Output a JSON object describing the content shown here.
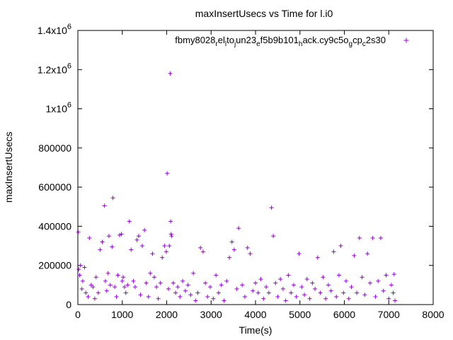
{
  "chart_data": {
    "type": "scatter",
    "title": "maxInsertUsecs vs Time for l.i0",
    "xlabel": "Time(s)",
    "ylabel": "maxInsertUsecs",
    "xlim": [
      0,
      8000
    ],
    "ylim": [
      0,
      1400000
    ],
    "x_ticks": [
      {
        "value": 0,
        "label": "0"
      },
      {
        "value": 1000,
        "label": "1000"
      },
      {
        "value": 2000,
        "label": "2000"
      },
      {
        "value": 3000,
        "label": "3000"
      },
      {
        "value": 4000,
        "label": "4000"
      },
      {
        "value": 5000,
        "label": "5000"
      },
      {
        "value": 6000,
        "label": "6000"
      },
      {
        "value": 7000,
        "label": "7000"
      },
      {
        "value": 8000,
        "label": "8000"
      }
    ],
    "y_ticks": [
      {
        "value": 0,
        "label": "0",
        "exp": ""
      },
      {
        "value": 200000,
        "label": "200000",
        "exp": ""
      },
      {
        "value": 400000,
        "label": "400000",
        "exp": ""
      },
      {
        "value": 600000,
        "label": "600000",
        "exp": ""
      },
      {
        "value": 800000,
        "label": "800000",
        "exp": ""
      },
      {
        "value": 1000000,
        "label": "1x10",
        "exp": "6"
      },
      {
        "value": 1200000,
        "label": "1.2x10",
        "exp": "6"
      },
      {
        "value": 1400000,
        "label": "1.4x10",
        "exp": "6"
      }
    ],
    "grid": false,
    "legend_position": "top-right",
    "series": [
      {
        "legend_parts": [
          "fbmy8028",
          "r",
          "el",
          "l",
          "to",
          "j",
          "un23",
          "e",
          "f5b9b101",
          "h",
          "ack.cy9c5o",
          "g",
          "cp",
          "c",
          "2s30"
        ],
        "color": "#9400d3",
        "marker": "+",
        "points": [
          [
            10,
            370000
          ],
          [
            20,
            180000
          ],
          [
            40,
            150000
          ],
          [
            60,
            200000
          ],
          [
            90,
            80000
          ],
          [
            110,
            120000
          ],
          [
            150,
            190000
          ],
          [
            180,
            60000
          ],
          [
            230,
            40000
          ],
          [
            260,
            340000
          ],
          [
            300,
            100000
          ],
          [
            340,
            90000
          ],
          [
            380,
            30000
          ],
          [
            410,
            140000
          ],
          [
            460,
            60000
          ],
          [
            500,
            280000
          ],
          [
            550,
            320000
          ],
          [
            600,
            505000
          ],
          [
            620,
            120000
          ],
          [
            650,
            70000
          ],
          [
            680,
            160000
          ],
          [
            700,
            350000
          ],
          [
            730,
            100000
          ],
          [
            770,
            295000
          ],
          [
            790,
            545000
          ],
          [
            830,
            90000
          ],
          [
            870,
            40000
          ],
          [
            900,
            150000
          ],
          [
            940,
            355000
          ],
          [
            980,
            360000
          ],
          [
            1000,
            120000
          ],
          [
            1020,
            140000
          ],
          [
            1050,
            90000
          ],
          [
            1080,
            60000
          ],
          [
            1120,
            100000
          ],
          [
            1160,
            425000
          ],
          [
            1200,
            280000
          ],
          [
            1250,
            120000
          ],
          [
            1290,
            90000
          ],
          [
            1330,
            330000
          ],
          [
            1370,
            350000
          ],
          [
            1410,
            50000
          ],
          [
            1450,
            300000
          ],
          [
            1500,
            380000
          ],
          [
            1540,
            110000
          ],
          [
            1590,
            40000
          ],
          [
            1630,
            160000
          ],
          [
            1680,
            260000
          ],
          [
            1720,
            140000
          ],
          [
            1770,
            90000
          ],
          [
            1810,
            30000
          ],
          [
            1860,
            110000
          ],
          [
            1900,
            240000
          ],
          [
            1950,
            300000
          ],
          [
            1990,
            270000
          ],
          [
            2010,
            670000
          ],
          [
            2040,
            80000
          ],
          [
            2060,
            300000
          ],
          [
            2080,
            1180000
          ],
          [
            2090,
            425000
          ],
          [
            2100,
            360000
          ],
          [
            2110,
            350000
          ],
          [
            2150,
            110000
          ],
          [
            2200,
            60000
          ],
          [
            2250,
            90000
          ],
          [
            2300,
            40000
          ],
          [
            2360,
            120000
          ],
          [
            2420,
            70000
          ],
          [
            2480,
            100000
          ],
          [
            2540,
            50000
          ],
          [
            2600,
            160000
          ],
          [
            2650,
            20000
          ],
          [
            2700,
            60000
          ],
          [
            2760,
            290000
          ],
          [
            2820,
            270000
          ],
          [
            2870,
            110000
          ],
          [
            2920,
            40000
          ],
          [
            2980,
            90000
          ],
          [
            3050,
            30000
          ],
          [
            3110,
            150000
          ],
          [
            3170,
            60000
          ],
          [
            3230,
            100000
          ],
          [
            3290,
            20000
          ],
          [
            3350,
            120000
          ],
          [
            3410,
            240000
          ],
          [
            3470,
            320000
          ],
          [
            3520,
            280000
          ],
          [
            3580,
            80000
          ],
          [
            3620,
            390000
          ],
          [
            3700,
            100000
          ],
          [
            3760,
            40000
          ],
          [
            3820,
            290000
          ],
          [
            3880,
            260000
          ],
          [
            3940,
            70000
          ],
          [
            4000,
            110000
          ],
          [
            4060,
            60000
          ],
          [
            4120,
            130000
          ],
          [
            4180,
            30000
          ],
          [
            4240,
            90000
          ],
          [
            4300,
            60000
          ],
          [
            4360,
            495000
          ],
          [
            4400,
            350000
          ],
          [
            4450,
            110000
          ],
          [
            4500,
            40000
          ],
          [
            4560,
            130000
          ],
          [
            4620,
            80000
          ],
          [
            4680,
            20000
          ],
          [
            4740,
            150000
          ],
          [
            4800,
            60000
          ],
          [
            4860,
            100000
          ],
          [
            4920,
            40000
          ],
          [
            4980,
            260000
          ],
          [
            5040,
            90000
          ],
          [
            5100,
            50000
          ],
          [
            5160,
            130000
          ],
          [
            5220,
            30000
          ],
          [
            5280,
            110000
          ],
          [
            5340,
            80000
          ],
          [
            5400,
            240000
          ],
          [
            5460,
            60000
          ],
          [
            5520,
            140000
          ],
          [
            5580,
            30000
          ],
          [
            5640,
            100000
          ],
          [
            5700,
            70000
          ],
          [
            5760,
            270000
          ],
          [
            5820,
            40000
          ],
          [
            5880,
            150000
          ],
          [
            5920,
            300000
          ],
          [
            5980,
            60000
          ],
          [
            6040,
            120000
          ],
          [
            6100,
            30000
          ],
          [
            6160,
            90000
          ],
          [
            6220,
            250000
          ],
          [
            6280,
            60000
          ],
          [
            6340,
            340000
          ],
          [
            6400,
            140000
          ],
          [
            6460,
            50000
          ],
          [
            6520,
            260000
          ],
          [
            6580,
            110000
          ],
          [
            6640,
            340000
          ],
          [
            6700,
            40000
          ],
          [
            6760,
            120000
          ],
          [
            6820,
            340000
          ],
          [
            6880,
            70000
          ],
          [
            6940,
            150000
          ],
          [
            7000,
            30000
          ],
          [
            7060,
            100000
          ],
          [
            7100,
            60000
          ],
          [
            7120,
            155000
          ],
          [
            7140,
            20000
          ]
        ]
      }
    ]
  }
}
